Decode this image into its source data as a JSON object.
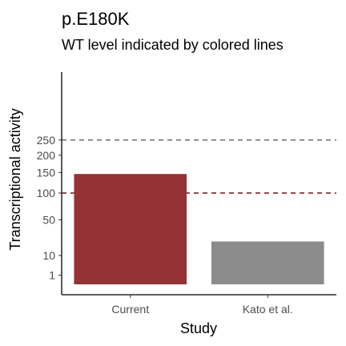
{
  "chart_data": {
    "type": "bar",
    "title": "p.E180K",
    "subtitle": "WT level indicated by colored lines",
    "xlabel": "Study",
    "ylabel": "Transcriptional activity",
    "categories": [
      "Current",
      "Kato et al."
    ],
    "values": [
      146,
      22
    ],
    "bar_colors": [
      "#943236",
      "#8c8c8c"
    ],
    "y_scale": "sqrt",
    "y_ticks": [
      1,
      10,
      50,
      100,
      150,
      200,
      250
    ],
    "ylim": [
      0,
      400
    ],
    "reference_lines": [
      {
        "value": 250,
        "color": "#6e6e6e",
        "style": "dashed"
      },
      {
        "value": 100,
        "color": "#7a0f14",
        "style": "dashed"
      }
    ],
    "grid": false,
    "legend": "none"
  }
}
